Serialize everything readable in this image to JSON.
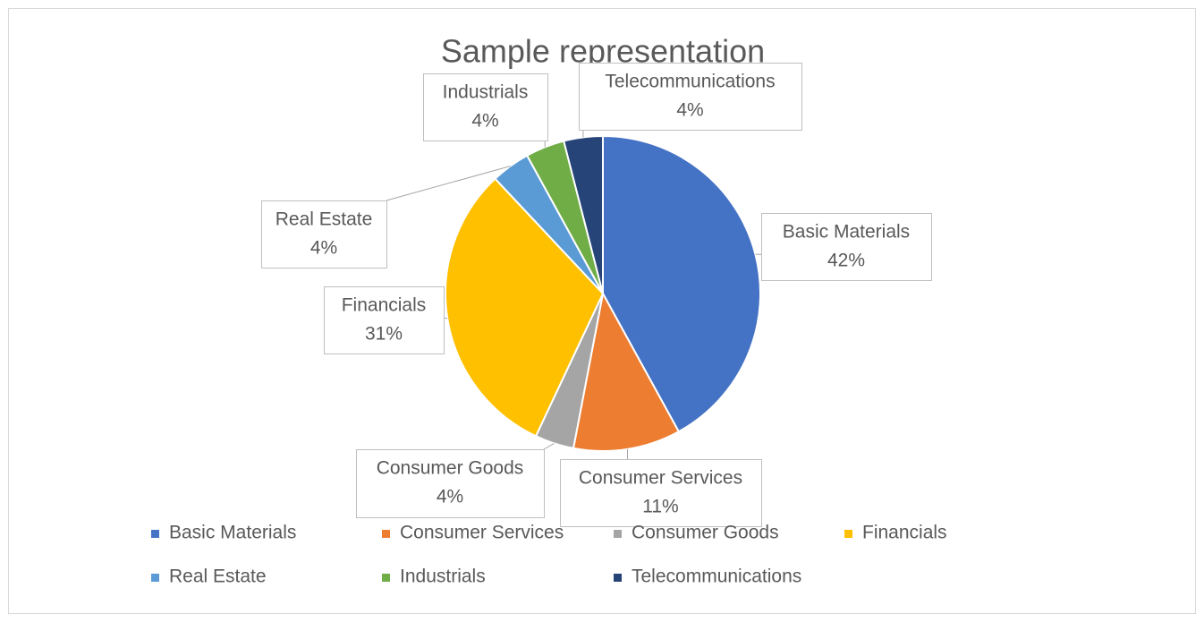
{
  "chart_data": {
    "type": "pie",
    "title": "Sample representation",
    "categories": [
      "Basic Materials",
      "Consumer Services",
      "Consumer Goods",
      "Financials",
      "Real Estate",
      "Industrials",
      "Telecommunications"
    ],
    "values": [
      42,
      11,
      4,
      31,
      4,
      4,
      4
    ],
    "value_labels": [
      "42%",
      "11%",
      "4%",
      "31%",
      "4%",
      "4%",
      "4%"
    ],
    "colors": [
      "#4472c4",
      "#ed7d31",
      "#a5a5a5",
      "#ffc000",
      "#5b9bd5",
      "#70ad47",
      "#264478"
    ],
    "legend": "bottom"
  }
}
